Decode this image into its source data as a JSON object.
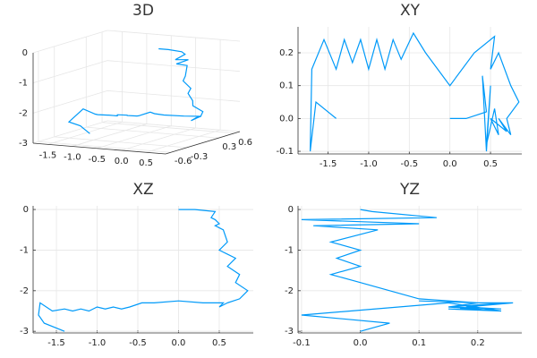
{
  "chart_data": [
    {
      "type": "line3d",
      "title": "3D",
      "color": "#009af9",
      "grid": true,
      "x": [
        0,
        0.2,
        0.45,
        0.4,
        0.45,
        0.5,
        0.45,
        0.55,
        0.6,
        0.5,
        0.7,
        0.6,
        0.75,
        0.7,
        0.85,
        0.75,
        0.6,
        0.5,
        0.55,
        0.3,
        0,
        -0.3,
        -0.45,
        -0.6,
        -0.7,
        -0.8,
        -0.9,
        -1,
        -1.1,
        -1.2,
        -1.3,
        -1.4,
        -1.55,
        -1.7,
        -1.72,
        -1.65,
        -1.4
      ],
      "y": [
        0,
        0,
        0.02,
        0.13,
        -0.1,
        0.1,
        -0.08,
        0.03,
        -0.05,
        0,
        -0.04,
        0,
        -0.05,
        0,
        0.05,
        0.1,
        0.2,
        0.15,
        0.25,
        0.2,
        0.1,
        0.2,
        0.26,
        0.18,
        0.24,
        0.15,
        0.24,
        0.15,
        0.24,
        0.17,
        0.24,
        0.15,
        0.24,
        0.15,
        -0.1,
        0.05,
        0
      ],
      "z": [
        0,
        0,
        -0.05,
        -0.2,
        -0.25,
        -0.35,
        -0.4,
        -0.5,
        -0.8,
        -1,
        -1.2,
        -1.4,
        -1.6,
        -1.8,
        -2,
        -2.2,
        -2.3,
        -2.4,
        -2.3,
        -2.3,
        -2.25,
        -2.3,
        -2.3,
        -2.4,
        -2.45,
        -2.4,
        -2.45,
        -2.4,
        -2.5,
        -2.45,
        -2.5,
        -2.45,
        -2.5,
        -2.3,
        -2.6,
        -2.8,
        -3
      ],
      "xlim": [
        -1.8,
        0.9
      ],
      "ylim": [
        -0.7,
        0.7
      ],
      "zlim": [
        -3,
        0
      ],
      "xticks": [
        -1.5,
        {
          "value": -1,
          "label": "-1.0"
        },
        -0.5,
        {
          "value": 0,
          "label": "0.0"
        },
        0.5
      ],
      "yticks": [
        -0.6,
        -0.3,
        0.3,
        0.6
      ],
      "zticks": [
        -3,
        -2,
        -1,
        0
      ]
    },
    {
      "type": "line",
      "title": "XY",
      "color": "#009af9",
      "grid": true,
      "x": [
        0,
        0.2,
        0.45,
        0.4,
        0.45,
        0.5,
        0.45,
        0.55,
        0.6,
        0.5,
        0.7,
        0.6,
        0.75,
        0.7,
        0.85,
        0.75,
        0.6,
        0.5,
        0.55,
        0.3,
        0,
        -0.3,
        -0.45,
        -0.6,
        -0.7,
        -0.8,
        -0.9,
        -1,
        -1.1,
        -1.2,
        -1.3,
        -1.4,
        -1.55,
        -1.7,
        -1.72,
        -1.65,
        -1.4
      ],
      "values": [
        0,
        0,
        0.02,
        0.13,
        -0.1,
        0.1,
        -0.08,
        0.03,
        -0.05,
        0,
        -0.04,
        0,
        -0.05,
        0,
        0.05,
        0.1,
        0.2,
        0.15,
        0.25,
        0.2,
        0.1,
        0.2,
        0.26,
        0.18,
        0.24,
        0.15,
        0.24,
        0.15,
        0.24,
        0.17,
        0.24,
        0.15,
        0.24,
        0.15,
        -0.1,
        0.05,
        0
      ],
      "xlim": [
        -1.87,
        0.885
      ],
      "ylim": [
        -0.108,
        0.279
      ],
      "xticks": [
        -1.5,
        {
          "value": -1,
          "label": "-1.0"
        },
        -0.5,
        {
          "value": 0,
          "label": "0.0"
        },
        0.5
      ],
      "yticks": [
        -0.1,
        {
          "value": 0,
          "label": "0.0"
        },
        0.1,
        0.2
      ]
    },
    {
      "type": "line",
      "title": "XZ",
      "color": "#009af9",
      "grid": true,
      "x": [
        0,
        0.2,
        0.45,
        0.4,
        0.45,
        0.5,
        0.45,
        0.55,
        0.6,
        0.5,
        0.7,
        0.6,
        0.75,
        0.7,
        0.85,
        0.75,
        0.6,
        0.5,
        0.55,
        0.3,
        0,
        -0.3,
        -0.45,
        -0.6,
        -0.7,
        -0.8,
        -0.9,
        -1,
        -1.1,
        -1.2,
        -1.3,
        -1.4,
        -1.55,
        -1.7,
        -1.72,
        -1.65,
        -1.4
      ],
      "values": [
        0,
        0,
        -0.05,
        -0.2,
        -0.25,
        -0.35,
        -0.4,
        -0.5,
        -0.8,
        -1,
        -1.2,
        -1.4,
        -1.6,
        -1.8,
        -2,
        -2.2,
        -2.3,
        -2.4,
        -2.3,
        -2.3,
        -2.25,
        -2.3,
        -2.3,
        -2.4,
        -2.45,
        -2.4,
        -2.45,
        -2.4,
        -2.5,
        -2.45,
        -2.5,
        -2.45,
        -2.5,
        -2.3,
        -2.6,
        -2.8,
        -3
      ],
      "xlim": [
        -1.786,
        0.918
      ],
      "ylim": [
        -3.04,
        0.09
      ],
      "xticks": [
        -1.5,
        {
          "value": -1,
          "label": "-1.0"
        },
        -0.5,
        {
          "value": 0,
          "label": "0.0"
        },
        0.5
      ],
      "yticks": [
        -3,
        -2,
        -1,
        0
      ]
    },
    {
      "type": "line",
      "title": "YZ",
      "color": "#009af9",
      "grid": true,
      "x": [
        0,
        0,
        0.02,
        0.13,
        -0.1,
        0.1,
        -0.08,
        0.03,
        -0.05,
        0,
        -0.04,
        0,
        -0.05,
        0,
        0.05,
        0.1,
        0.2,
        0.15,
        0.25,
        0.2,
        0.1,
        0.2,
        0.26,
        0.18,
        0.24,
        0.15,
        0.24,
        0.15,
        0.24,
        0.17,
        0.24,
        0.15,
        0.24,
        0.15,
        -0.1,
        0.05,
        0
      ],
      "values": [
        0,
        0,
        -0.05,
        -0.2,
        -0.25,
        -0.35,
        -0.4,
        -0.5,
        -0.8,
        -1,
        -1.2,
        -1.4,
        -1.6,
        -1.8,
        -2,
        -2.2,
        -2.3,
        -2.4,
        -2.3,
        -2.3,
        -2.25,
        -2.3,
        -2.3,
        -2.4,
        -2.45,
        -2.4,
        -2.45,
        -2.4,
        -2.5,
        -2.45,
        -2.5,
        -2.45,
        -2.5,
        -2.3,
        -2.6,
        -2.8,
        -3
      ],
      "xlim": [
        -0.106,
        0.275
      ],
      "ylim": [
        -3.04,
        0.09
      ],
      "xticks": [
        -0.1,
        {
          "value": 0,
          "label": "0.0"
        },
        0.1,
        0.2
      ],
      "yticks": [
        -3,
        -2,
        -1,
        0
      ]
    }
  ]
}
